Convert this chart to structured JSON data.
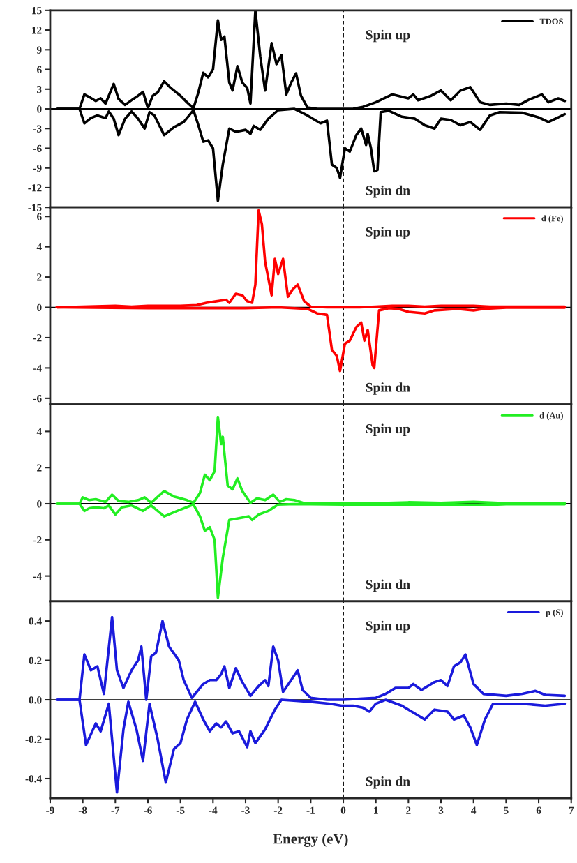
{
  "chart_data": [
    {
      "type": "line",
      "xlim": [
        -9,
        7
      ],
      "xticks": [
        -9,
        -8,
        -7,
        -6,
        -5,
        -4,
        -3,
        -2,
        -1,
        0,
        1,
        2,
        3,
        4,
        5,
        6,
        7
      ],
      "ylim": [
        -15,
        15
      ],
      "yticks": [
        -15,
        -12,
        -9,
        -6,
        -3,
        0,
        3,
        6,
        9,
        12,
        15
      ],
      "tick_labels": "y",
      "legend": "top right",
      "grid": false,
      "annotations": [
        "Spin up",
        "Spin dn"
      ],
      "ref_lines": [
        {
          "axis": "x",
          "value": 0,
          "line_style": "dashed",
          "color": "#000000"
        },
        {
          "axis": "y",
          "value": 0,
          "line_style": "solid",
          "color": "#000000"
        }
      ],
      "series": [
        {
          "name": "TDOS",
          "color": "#000000",
          "x": [
            -8.8,
            -8.1,
            -7.95,
            -7.8,
            -7.6,
            -7.45,
            -7.3,
            -7.05,
            -6.9,
            -6.7,
            -6.45,
            -6.3,
            -6.15,
            -6.0,
            -5.85,
            -5.7,
            -5.5,
            -5.3,
            -5.0,
            -4.8,
            -4.6,
            -4.45,
            -4.3,
            -4.15,
            -4.0,
            -3.85,
            -3.75,
            -3.65,
            -3.5,
            -3.4,
            -3.25,
            -3.1,
            -2.95,
            -2.85,
            -2.7,
            -2.55,
            -2.4,
            -2.2,
            -2.05,
            -1.9,
            -1.75,
            -1.6,
            -1.45,
            -1.3,
            -1.1,
            -0.8,
            -0.2,
            0.3,
            0.6,
            1.0,
            1.5,
            2.0,
            2.15,
            2.3,
            2.7,
            3.0,
            3.3,
            3.6,
            3.9,
            4.2,
            4.5,
            5.0,
            5.4,
            5.7,
            6.1,
            6.3,
            6.6,
            6.8
          ],
          "values": [
            0,
            0,
            2.2,
            1.8,
            1.2,
            1.6,
            0.8,
            3.8,
            1.5,
            0.6,
            1.5,
            2.0,
            2.6,
            0.1,
            2.0,
            2.5,
            4.2,
            3.2,
            2.0,
            1.0,
            0.1,
            2.5,
            5.5,
            4.8,
            6.0,
            13.5,
            10.5,
            11.0,
            4.0,
            2.8,
            6.5,
            4.0,
            3.2,
            0.8,
            15,
            8.0,
            2.8,
            10.0,
            6.8,
            8.2,
            2.2,
            4.0,
            5.4,
            2.0,
            0.2,
            0,
            0,
            0,
            0.3,
            1.0,
            2.2,
            1.6,
            2.2,
            1.3,
            2.0,
            2.8,
            1.3,
            2.8,
            3.3,
            1.0,
            0.6,
            0.8,
            0.6,
            1.4,
            2.2,
            1.0,
            1.6,
            1.2
          ]
        },
        {
          "color": "#000000",
          "x": [
            -8.8,
            -8.1,
            -7.95,
            -7.75,
            -7.55,
            -7.3,
            -7.2,
            -7.05,
            -6.9,
            -6.7,
            -6.5,
            -6.3,
            -6.1,
            -5.95,
            -5.8,
            -5.5,
            -5.2,
            -4.9,
            -4.6,
            -4.45,
            -4.3,
            -4.15,
            -4.0,
            -3.85,
            -3.7,
            -3.5,
            -3.3,
            -3.0,
            -2.85,
            -2.75,
            -2.55,
            -2.3,
            -2.0,
            -1.5,
            -1.1,
            -0.7,
            -0.5,
            -0.35,
            -0.2,
            -0.1,
            0.05,
            0.2,
            0.4,
            0.55,
            0.7,
            0.75,
            0.85,
            0.95,
            1.05,
            1.15,
            1.4,
            1.8,
            2.2,
            2.5,
            2.8,
            3.0,
            3.3,
            3.6,
            3.9,
            4.2,
            4.5,
            4.8,
            5.5,
            6.0,
            6.3,
            6.6,
            6.8
          ],
          "values": [
            0,
            0,
            -2.2,
            -1.4,
            -1.0,
            -1.4,
            -0.4,
            -1.5,
            -4.0,
            -1.5,
            -0.4,
            -1.5,
            -3.0,
            -0.5,
            -1.0,
            -4.0,
            -2.8,
            -2.0,
            -0.2,
            -2.5,
            -5.0,
            -4.8,
            -6.0,
            -14,
            -8.5,
            -3.0,
            -3.5,
            -3.2,
            -3.8,
            -2.6,
            -3.2,
            -1.5,
            -0.2,
            0,
            -1.0,
            -2.2,
            -1.8,
            -8.5,
            -9.0,
            -10.5,
            -6.0,
            -6.5,
            -4.0,
            -3.0,
            -5.5,
            -3.8,
            -6.0,
            -9.5,
            -9.3,
            -0.5,
            -0.3,
            -1.2,
            -1.5,
            -2.5,
            -3.0,
            -1.5,
            -1.7,
            -2.5,
            -2.0,
            -3.2,
            -1.0,
            -0.5,
            -0.6,
            -1.3,
            -2.0,
            -1.3,
            -0.8
          ]
        }
      ]
    },
    {
      "type": "line",
      "xlim": [
        -9,
        7
      ],
      "xticks": [
        -9,
        -8,
        -7,
        -6,
        -5,
        -4,
        -3,
        -2,
        -1,
        0,
        1,
        2,
        3,
        4,
        5,
        6,
        7
      ],
      "ylim": [
        -6.4,
        6.6
      ],
      "yticks": [
        -6,
        -4,
        -2,
        0,
        2,
        4,
        6
      ],
      "tick_labels": "y",
      "legend": "top right",
      "grid": false,
      "annotations": [
        "Spin up",
        "Spin dn"
      ],
      "ref_lines": [
        {
          "axis": "x",
          "value": 0,
          "line_style": "dashed",
          "color": "#000000"
        },
        {
          "axis": "y",
          "value": 0,
          "line_style": "solid",
          "color": "#000000"
        }
      ],
      "series": [
        {
          "name": "d (Fe)",
          "color": "#ff0000",
          "x": [
            -8.8,
            -7.0,
            -6.5,
            -6.0,
            -5.5,
            -5.0,
            -4.5,
            -4.2,
            -3.9,
            -3.6,
            -3.5,
            -3.3,
            -3.1,
            -2.95,
            -2.8,
            -2.7,
            -2.6,
            -2.5,
            -2.4,
            -2.2,
            -2.1,
            -2.0,
            -1.85,
            -1.7,
            -1.55,
            -1.4,
            -1.2,
            -1.0,
            -0.5,
            0,
            0.5,
            1.0,
            1.5,
            2.0,
            2.5,
            3.0,
            3.5,
            4.0,
            4.5,
            5.5,
            6.8
          ],
          "values": [
            0,
            0.1,
            0.05,
            0.1,
            0.1,
            0.1,
            0.15,
            0.3,
            0.4,
            0.5,
            0.3,
            0.9,
            0.8,
            0.4,
            0.3,
            1.5,
            6.4,
            5.5,
            3.0,
            0.8,
            3.2,
            2.2,
            3.2,
            0.7,
            1.2,
            1.5,
            0.4,
            0.05,
            0,
            0,
            0,
            0.05,
            0.1,
            0.1,
            0.05,
            0.1,
            0.1,
            0.1,
            0.05,
            0.05,
            0.05
          ]
        },
        {
          "color": "#ff0000",
          "x": [
            -8.8,
            -6,
            -3,
            -2,
            -1.1,
            -0.8,
            -0.5,
            -0.35,
            -0.2,
            -0.1,
            0.05,
            0.2,
            0.4,
            0.55,
            0.65,
            0.75,
            0.9,
            0.95,
            1.1,
            1.4,
            1.7,
            2.0,
            2.5,
            2.8,
            3.5,
            4.0,
            4.3,
            5,
            6.8
          ],
          "values": [
            0,
            -0.05,
            -0.05,
            0,
            -0.1,
            -0.4,
            -0.5,
            -2.8,
            -3.2,
            -4.2,
            -2.4,
            -2.2,
            -1.3,
            -1.0,
            -2.2,
            -1.5,
            -3.8,
            -4.0,
            -0.2,
            -0.05,
            -0.1,
            -0.3,
            -0.4,
            -0.2,
            -0.1,
            -0.2,
            -0.1,
            -0.02,
            -0.02
          ]
        }
      ]
    },
    {
      "type": "line",
      "xlim": [
        -9,
        7
      ],
      "xticks": [
        -9,
        -8,
        -7,
        -6,
        -5,
        -4,
        -3,
        -2,
        -1,
        0,
        1,
        2,
        3,
        4,
        5,
        6,
        7
      ],
      "ylim": [
        -5.4,
        5.5
      ],
      "yticks": [
        -4,
        -2,
        0,
        2,
        4
      ],
      "tick_labels": "y",
      "legend": "top right",
      "grid": false,
      "annotations": [
        "Spin up",
        "Spin dn"
      ],
      "ref_lines": [
        {
          "axis": "x",
          "value": 0,
          "line_style": "dashed",
          "color": "#000000"
        },
        {
          "axis": "y",
          "value": 0,
          "line_style": "solid",
          "color": "#000000"
        }
      ],
      "series": [
        {
          "name": "d (Au)",
          "color": "#22ee22",
          "x": [
            -8.8,
            -8.1,
            -8.0,
            -7.8,
            -7.6,
            -7.3,
            -7.1,
            -6.9,
            -6.6,
            -6.3,
            -6.1,
            -5.9,
            -5.75,
            -5.5,
            -5.2,
            -4.8,
            -4.6,
            -4.4,
            -4.25,
            -4.1,
            -3.95,
            -3.85,
            -3.75,
            -3.7,
            -3.55,
            -3.4,
            -3.25,
            -3.1,
            -2.85,
            -2.65,
            -2.4,
            -2.15,
            -1.95,
            -1.75,
            -1.5,
            -1.2,
            0,
            1,
            2,
            3,
            4,
            5,
            6,
            6.8
          ],
          "values": [
            0,
            0,
            0.35,
            0.2,
            0.25,
            0.1,
            0.5,
            0.15,
            0.1,
            0.2,
            0.35,
            0.05,
            0.3,
            0.7,
            0.4,
            0.2,
            0.05,
            0.6,
            1.6,
            1.3,
            1.8,
            4.8,
            3.3,
            3.7,
            1.0,
            0.8,
            1.4,
            0.7,
            0.05,
            0.3,
            0.2,
            0.5,
            0.1,
            0.25,
            0.2,
            0.03,
            0.02,
            0.03,
            0.08,
            0.05,
            0.1,
            0.03,
            0.05,
            0.03
          ]
        },
        {
          "color": "#22ee22",
          "x": [
            -8.8,
            -8.1,
            -7.95,
            -7.8,
            -7.6,
            -7.35,
            -7.2,
            -7.0,
            -6.8,
            -6.5,
            -6.15,
            -5.9,
            -5.5,
            -5.1,
            -4.6,
            -4.4,
            -4.25,
            -4.1,
            -3.95,
            -3.85,
            -3.7,
            -3.5,
            -3.2,
            -2.9,
            -2.8,
            -2.6,
            -2.3,
            -2.0,
            -1.5,
            0,
            1,
            3,
            4.2,
            5,
            6.8
          ],
          "values": [
            0,
            0,
            -0.4,
            -0.25,
            -0.2,
            -0.25,
            -0.1,
            -0.6,
            -0.2,
            -0.1,
            -0.4,
            -0.1,
            -0.7,
            -0.4,
            -0.05,
            -0.7,
            -1.5,
            -1.3,
            -2.0,
            -5.2,
            -3.0,
            -0.9,
            -0.8,
            -0.7,
            -0.9,
            -0.6,
            -0.4,
            -0.05,
            -0.02,
            -0.05,
            -0.05,
            -0.05,
            -0.08,
            -0.03,
            -0.03
          ]
        }
      ]
    },
    {
      "type": "line",
      "xlim": [
        -9,
        7
      ],
      "xticks": [
        -9,
        -8,
        -7,
        -6,
        -5,
        -4,
        -3,
        -2,
        -1,
        0,
        1,
        2,
        3,
        4,
        5,
        6,
        7
      ],
      "ylim": [
        -0.5,
        0.5
      ],
      "yticks": [
        {
          "value": -0.4,
          "label": "-0.4"
        },
        {
          "value": -0.2,
          "label": "-0.2"
        },
        {
          "value": 0,
          "label": "0.0"
        },
        {
          "value": 0.2,
          "label": "0.2"
        },
        {
          "value": 0.4,
          "label": "0.4"
        }
      ],
      "xlabel": "Energy (eV)",
      "legend": "top right",
      "grid": false,
      "annotations": [
        "Spin up",
        "Spin dn"
      ],
      "ref_lines": [
        {
          "axis": "x",
          "value": 0,
          "line_style": "dashed",
          "color": "#000000"
        },
        {
          "axis": "y",
          "value": 0,
          "line_style": "solid",
          "color": "#000000"
        }
      ],
      "series": [
        {
          "name": "p (S)",
          "color": "#1a1adc",
          "x": [
            -8.8,
            -8.1,
            -7.95,
            -7.75,
            -7.55,
            -7.35,
            -7.1,
            -6.95,
            -6.75,
            -6.5,
            -6.3,
            -6.2,
            -6.05,
            -5.9,
            -5.75,
            -5.55,
            -5.35,
            -5.05,
            -4.9,
            -4.65,
            -4.3,
            -4.1,
            -3.9,
            -3.75,
            -3.65,
            -3.5,
            -3.3,
            -3.1,
            -2.85,
            -2.6,
            -2.4,
            -2.3,
            -2.15,
            -2.0,
            -1.85,
            -1.6,
            -1.4,
            -1.25,
            -1.0,
            -0.5,
            0,
            0.5,
            1.0,
            1.3,
            1.6,
            2.0,
            2.15,
            2.4,
            2.8,
            3.0,
            3.2,
            3.4,
            3.6,
            3.75,
            4.0,
            4.3,
            5.0,
            5.5,
            5.9,
            6.2,
            6.8
          ],
          "values": [
            0,
            0,
            0.23,
            0.15,
            0.17,
            0.03,
            0.42,
            0.15,
            0.06,
            0.15,
            0.2,
            0.27,
            0.0,
            0.22,
            0.24,
            0.4,
            0.27,
            0.2,
            0.1,
            0.01,
            0.08,
            0.1,
            0.1,
            0.13,
            0.17,
            0.06,
            0.16,
            0.09,
            0.02,
            0.07,
            0.1,
            0.07,
            0.27,
            0.2,
            0.04,
            0.1,
            0.15,
            0.05,
            0.01,
            0,
            0,
            0.005,
            0.01,
            0.03,
            0.06,
            0.06,
            0.08,
            0.05,
            0.09,
            0.1,
            0.07,
            0.17,
            0.19,
            0.23,
            0.08,
            0.03,
            0.02,
            0.03,
            0.045,
            0.025,
            0.02
          ]
        },
        {
          "color": "#1a1adc",
          "x": [
            -8.8,
            -8.1,
            -7.9,
            -7.6,
            -7.45,
            -7.2,
            -6.95,
            -6.75,
            -6.6,
            -6.35,
            -6.15,
            -5.95,
            -5.7,
            -5.45,
            -5.2,
            -5.0,
            -4.8,
            -4.55,
            -4.3,
            -4.1,
            -3.9,
            -3.75,
            -3.6,
            -3.4,
            -3.2,
            -2.95,
            -2.85,
            -2.7,
            -2.4,
            -2.1,
            -1.9,
            -1.0,
            -0.4,
            -0.05,
            0.3,
            0.6,
            0.8,
            1.0,
            1.3,
            1.8,
            2.2,
            2.5,
            2.8,
            3.2,
            3.4,
            3.7,
            3.9,
            4.1,
            4.35,
            4.6,
            5.5,
            6.2,
            6.8
          ],
          "values": [
            0,
            0,
            -0.23,
            -0.12,
            -0.16,
            -0.02,
            -0.47,
            -0.15,
            -0.01,
            -0.15,
            -0.31,
            -0.02,
            -0.2,
            -0.42,
            -0.25,
            -0.22,
            -0.1,
            -0.01,
            -0.1,
            -0.16,
            -0.12,
            -0.14,
            -0.11,
            -0.17,
            -0.16,
            -0.24,
            -0.16,
            -0.22,
            -0.15,
            -0.05,
            0,
            -0.01,
            -0.02,
            -0.03,
            -0.03,
            -0.04,
            -0.06,
            -0.02,
            0,
            -0.03,
            -0.07,
            -0.1,
            -0.05,
            -0.06,
            -0.1,
            -0.08,
            -0.14,
            -0.23,
            -0.1,
            -0.02,
            -0.02,
            -0.03,
            -0.02
          ]
        }
      ]
    }
  ]
}
